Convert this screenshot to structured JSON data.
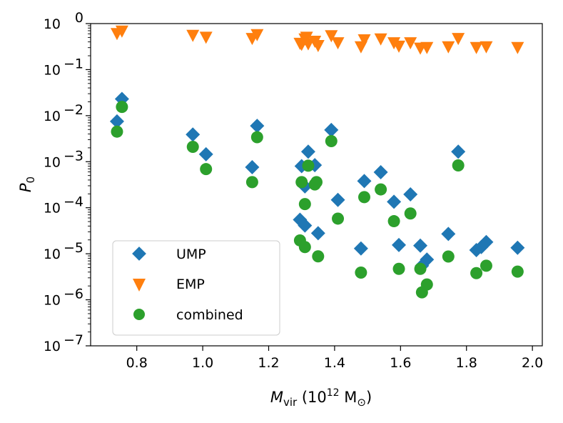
{
  "chart_data": {
    "type": "scatter",
    "title": "",
    "xlabel": {
      "prefix": "M",
      "sub": "vir",
      "paren_open": " (10",
      "sup": "12",
      "unit": " M",
      "unit_sub": "⊙",
      "paren_close": ")"
    },
    "ylabel": {
      "main": "P",
      "sub": "0"
    },
    "xlim": [
      0.66,
      2.03
    ],
    "ylim_log10": [
      -7,
      0
    ],
    "yscale": "log",
    "x_ticks": [
      0.8,
      1.0,
      1.2,
      1.4,
      1.6,
      1.8,
      2.0
    ],
    "x_tick_labels": [
      "0.8",
      "1.0",
      "1.2",
      "1.4",
      "1.6",
      "1.8",
      "2.0"
    ],
    "y_ticks": [
      {
        "exp": -7,
        "base": "10",
        "sup": "−7"
      },
      {
        "exp": -6,
        "base": "10",
        "sup": "−6"
      },
      {
        "exp": -5,
        "base": "10",
        "sup": "−5"
      },
      {
        "exp": -4,
        "base": "10",
        "sup": "−4"
      },
      {
        "exp": -3,
        "base": "10",
        "sup": "−3"
      },
      {
        "exp": -2,
        "base": "10",
        "sup": "−2"
      },
      {
        "exp": -1,
        "base": "10",
        "sup": "−1"
      },
      {
        "exp": 0,
        "base": "10",
        "sup": "0"
      }
    ],
    "legend_position": "lower-left",
    "series": [
      {
        "name": "UMP",
        "marker": "diamond",
        "color": "#1f77b4",
        "points": [
          [
            0.74,
            0.0075
          ],
          [
            0.755,
            0.023
          ],
          [
            0.97,
            0.0039
          ],
          [
            1.01,
            0.00145
          ],
          [
            1.15,
            0.00076
          ],
          [
            1.165,
            0.006
          ],
          [
            1.295,
            5.5e-05
          ],
          [
            1.3,
            0.0008
          ],
          [
            1.31,
            0.00029
          ],
          [
            1.31,
            4.1e-05
          ],
          [
            1.32,
            0.00165
          ],
          [
            1.34,
            0.00084
          ],
          [
            1.35,
            2.8e-05
          ],
          [
            1.39,
            0.0049
          ],
          [
            1.41,
            0.000148
          ],
          [
            1.48,
            1.3e-05
          ],
          [
            1.49,
            0.00038
          ],
          [
            1.54,
            0.00059
          ],
          [
            1.58,
            0.000135
          ],
          [
            1.595,
            1.55e-05
          ],
          [
            1.63,
            0.000195
          ],
          [
            1.66,
            1.5e-05
          ],
          [
            1.665,
            5.5e-06
          ],
          [
            1.68,
            7.5e-06
          ],
          [
            1.745,
            2.7e-05
          ],
          [
            1.775,
            0.00165
          ],
          [
            1.83,
            1.2e-05
          ],
          [
            1.845,
            1.4e-05
          ],
          [
            1.86,
            1.8e-05
          ],
          [
            1.955,
            1.35e-05
          ]
        ]
      },
      {
        "name": "EMP",
        "marker": "triangle-down",
        "color": "#ff7f0e",
        "points": [
          [
            0.74,
            0.6
          ],
          [
            0.755,
            0.68
          ],
          [
            0.97,
            0.55
          ],
          [
            1.01,
            0.5
          ],
          [
            1.15,
            0.47
          ],
          [
            1.165,
            0.57
          ],
          [
            1.295,
            0.37
          ],
          [
            1.3,
            0.35
          ],
          [
            1.31,
            0.46
          ],
          [
            1.315,
            0.5
          ],
          [
            1.32,
            0.36
          ],
          [
            1.34,
            0.41
          ],
          [
            1.35,
            0.33
          ],
          [
            1.39,
            0.54
          ],
          [
            1.41,
            0.38
          ],
          [
            1.48,
            0.31
          ],
          [
            1.49,
            0.44
          ],
          [
            1.54,
            0.46
          ],
          [
            1.58,
            0.38
          ],
          [
            1.595,
            0.32
          ],
          [
            1.63,
            0.38
          ],
          [
            1.66,
            0.29
          ],
          [
            1.68,
            0.3
          ],
          [
            1.745,
            0.31
          ],
          [
            1.775,
            0.47
          ],
          [
            1.83,
            0.3
          ],
          [
            1.86,
            0.31
          ],
          [
            1.955,
            0.3
          ]
        ]
      },
      {
        "name": "combined",
        "marker": "circle",
        "color": "#2ca02c",
        "points": [
          [
            0.74,
            0.0045
          ],
          [
            0.755,
            0.0155
          ],
          [
            0.97,
            0.0021
          ],
          [
            1.01,
            0.00069
          ],
          [
            1.15,
            0.00036
          ],
          [
            1.165,
            0.0034
          ],
          [
            1.295,
            1.95e-05
          ],
          [
            1.3,
            0.00036
          ],
          [
            1.31,
            0.00012
          ],
          [
            1.31,
            1.4e-05
          ],
          [
            1.32,
            0.00082
          ],
          [
            1.34,
            0.00032
          ],
          [
            1.345,
            0.00036
          ],
          [
            1.35,
            8.8e-06
          ],
          [
            1.39,
            0.0028
          ],
          [
            1.41,
            5.8e-05
          ],
          [
            1.48,
            3.9e-06
          ],
          [
            1.49,
            0.00017
          ],
          [
            1.54,
            0.00025
          ],
          [
            1.58,
            5.1e-05
          ],
          [
            1.595,
            4.7e-06
          ],
          [
            1.63,
            7.5e-05
          ],
          [
            1.66,
            4.7e-06
          ],
          [
            1.665,
            1.45e-06
          ],
          [
            1.68,
            2.15e-06
          ],
          [
            1.745,
            8.7e-06
          ],
          [
            1.775,
            0.00083
          ],
          [
            1.83,
            3.8e-06
          ],
          [
            1.86,
            5.5e-06
          ],
          [
            1.955,
            4.1e-06
          ]
        ]
      }
    ]
  }
}
